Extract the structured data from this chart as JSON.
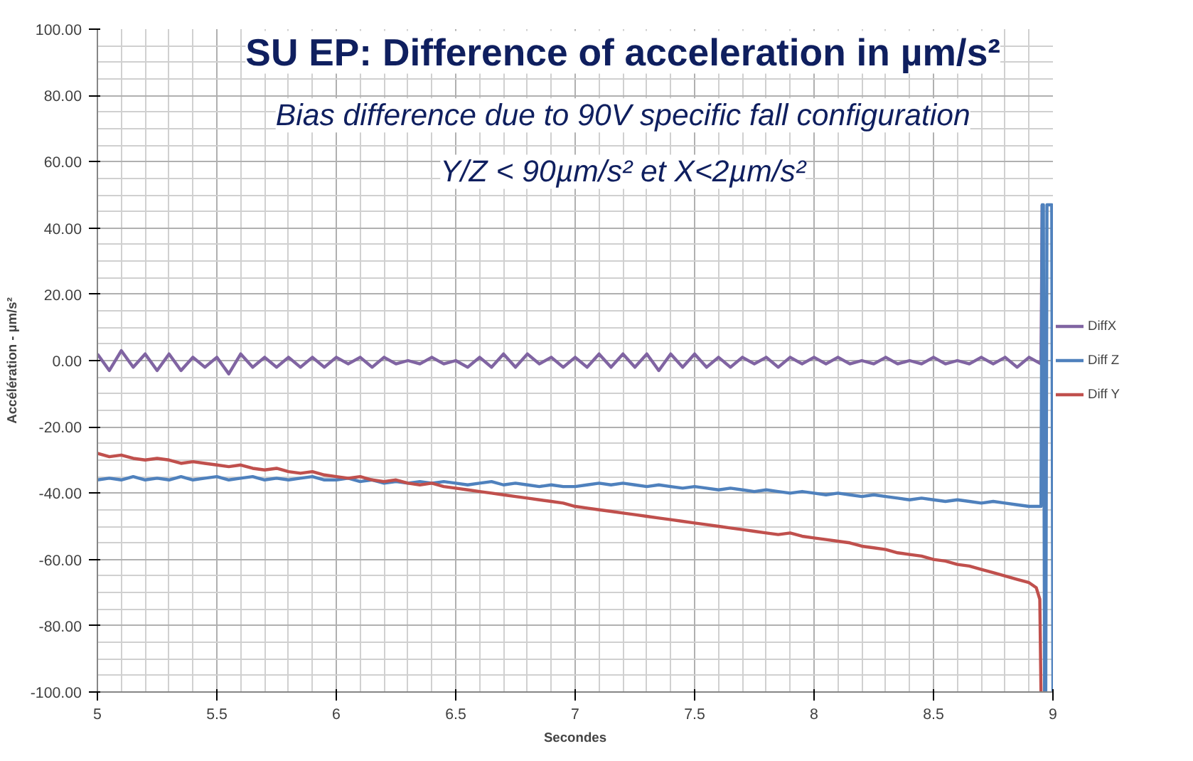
{
  "chart_data": {
    "type": "line",
    "title": "SU EP: Difference of acceleration in µm/s²",
    "subtitle": "Bias difference due to 90V specific fall configuration\nY/Z < 90µm/s² et X<2µm/s²",
    "xlabel": "Secondes",
    "ylabel": "Accélération - µm/s²",
    "xlim": [
      5,
      9
    ],
    "xticks": [
      5,
      5.5,
      6,
      6.5,
      7,
      7.5,
      8,
      8.5,
      9
    ],
    "ylim": [
      -100,
      100
    ],
    "yticks": [
      {
        "value": -100,
        "label": "-100.00"
      },
      {
        "value": -80,
        "label": "-80.00"
      },
      {
        "value": -60,
        "label": "-60.00"
      },
      {
        "value": -40,
        "label": "-40.00"
      },
      {
        "value": -20,
        "label": "-20.00"
      },
      {
        "value": 0,
        "label": "0.00"
      },
      {
        "value": 20,
        "label": "20.00"
      },
      {
        "value": 40,
        "label": "40.00"
      },
      {
        "value": 60,
        "label": "60.00"
      },
      {
        "value": 80,
        "label": "80.00"
      },
      {
        "value": 100,
        "label": "100.00"
      }
    ],
    "grid": true,
    "legend": "right",
    "line_style": "solid",
    "series": [
      {
        "name": "DiffX",
        "color": "#8064a2",
        "x": [
          5.0,
          5.05,
          5.1,
          5.15,
          5.2,
          5.25,
          5.3,
          5.35,
          5.4,
          5.45,
          5.5,
          5.55,
          5.6,
          5.65,
          5.7,
          5.75,
          5.8,
          5.85,
          5.9,
          5.95,
          6.0,
          6.05,
          6.1,
          6.15,
          6.2,
          6.25,
          6.3,
          6.35,
          6.4,
          6.45,
          6.5,
          6.55,
          6.6,
          6.65,
          6.7,
          6.75,
          6.8,
          6.85,
          6.9,
          6.95,
          7.0,
          7.05,
          7.1,
          7.15,
          7.2,
          7.25,
          7.3,
          7.35,
          7.4,
          7.45,
          7.5,
          7.55,
          7.6,
          7.65,
          7.7,
          7.75,
          7.8,
          7.85,
          7.9,
          7.95,
          8.0,
          8.05,
          8.1,
          8.15,
          8.2,
          8.25,
          8.3,
          8.35,
          8.4,
          8.45,
          8.5,
          8.55,
          8.6,
          8.65,
          8.7,
          8.75,
          8.8,
          8.85,
          8.9,
          8.95,
          8.955
        ],
        "values": [
          2,
          -3,
          3,
          -2,
          2,
          -3,
          2,
          -3,
          1,
          -2,
          1,
          -4,
          2,
          -2,
          1,
          -2,
          1,
          -2,
          1,
          -2,
          1,
          -1,
          1,
          -2,
          1,
          -1,
          0,
          -1,
          1,
          -1,
          0,
          -2,
          1,
          -2,
          2,
          -2,
          2,
          -1,
          1,
          -2,
          1,
          -2,
          2,
          -2,
          2,
          -2,
          2,
          -3,
          2,
          -2,
          2,
          -2,
          1,
          -2,
          1,
          -1,
          1,
          -2,
          1,
          -1,
          1,
          -1,
          1,
          -1,
          0,
          -1,
          1,
          -1,
          0,
          -1,
          1,
          -1,
          0,
          -1,
          1,
          -1,
          1,
          -2,
          1,
          -1,
          47
        ]
      },
      {
        "name": "Diff Z",
        "color": "#4f81bd",
        "x": [
          5.0,
          5.05,
          5.1,
          5.15,
          5.2,
          5.25,
          5.3,
          5.35,
          5.4,
          5.45,
          5.5,
          5.55,
          5.6,
          5.65,
          5.7,
          5.75,
          5.8,
          5.85,
          5.9,
          5.95,
          6.0,
          6.05,
          6.1,
          6.15,
          6.2,
          6.25,
          6.3,
          6.35,
          6.4,
          6.45,
          6.5,
          6.55,
          6.6,
          6.65,
          6.7,
          6.75,
          6.8,
          6.85,
          6.9,
          6.95,
          7.0,
          7.05,
          7.1,
          7.15,
          7.2,
          7.25,
          7.3,
          7.35,
          7.4,
          7.45,
          7.5,
          7.55,
          7.6,
          7.65,
          7.7,
          7.75,
          7.8,
          7.85,
          7.9,
          7.95,
          8.0,
          8.05,
          8.1,
          8.15,
          8.2,
          8.25,
          8.3,
          8.35,
          8.4,
          8.45,
          8.5,
          8.55,
          8.6,
          8.65,
          8.7,
          8.75,
          8.8,
          8.85,
          8.9,
          8.95,
          8.955,
          8.96,
          8.965,
          8.97,
          8.975,
          8.995,
          9.0
        ],
        "values": [
          -36,
          -35.5,
          -36,
          -35,
          -36,
          -35.5,
          -36,
          -35,
          -36,
          -35.5,
          -35,
          -36,
          -35.5,
          -35,
          -36,
          -35.5,
          -36,
          -35.5,
          -35,
          -36,
          -36,
          -35.5,
          -36.5,
          -36,
          -37,
          -36.5,
          -37,
          -36.5,
          -37,
          -36.5,
          -37,
          -37.5,
          -37,
          -36.5,
          -37.5,
          -37,
          -37.5,
          -38,
          -37.5,
          -38,
          -38,
          -37.5,
          -37,
          -37.5,
          -37,
          -37.5,
          -38,
          -37.5,
          -38,
          -38.5,
          -38,
          -38.5,
          -39,
          -38.5,
          -39,
          -39.5,
          -39,
          -39.5,
          -40,
          -39.5,
          -40,
          -40.5,
          -40,
          -40.5,
          -41,
          -40.5,
          -41,
          -41.5,
          -42,
          -41.5,
          -42,
          -42.5,
          -42,
          -42.5,
          -43,
          -42.5,
          -43,
          -43.5,
          -44,
          -44,
          47,
          47,
          -100,
          -100,
          47,
          47,
          -100
        ]
      },
      {
        "name": "Diff Y",
        "color": "#c0504d",
        "x": [
          5.0,
          5.05,
          5.1,
          5.15,
          5.2,
          5.25,
          5.3,
          5.35,
          5.4,
          5.45,
          5.5,
          5.55,
          5.6,
          5.65,
          5.7,
          5.75,
          5.8,
          5.85,
          5.9,
          5.95,
          6.0,
          6.05,
          6.1,
          6.15,
          6.2,
          6.25,
          6.3,
          6.35,
          6.4,
          6.45,
          6.5,
          6.55,
          6.6,
          6.65,
          6.7,
          6.75,
          6.8,
          6.85,
          6.9,
          6.95,
          7.0,
          7.05,
          7.1,
          7.15,
          7.2,
          7.25,
          7.3,
          7.35,
          7.4,
          7.45,
          7.5,
          7.55,
          7.6,
          7.65,
          7.7,
          7.75,
          7.8,
          7.85,
          7.9,
          7.95,
          8.0,
          8.05,
          8.1,
          8.15,
          8.2,
          8.25,
          8.3,
          8.35,
          8.4,
          8.45,
          8.5,
          8.55,
          8.6,
          8.65,
          8.7,
          8.75,
          8.8,
          8.85,
          8.9,
          8.93,
          8.945,
          8.95
        ],
        "values": [
          -28,
          -29,
          -28.5,
          -29.5,
          -30,
          -29.5,
          -30,
          -31,
          -30.5,
          -31,
          -31.5,
          -32,
          -31.5,
          -32.5,
          -33,
          -32.5,
          -33.5,
          -34,
          -33.5,
          -34.5,
          -35,
          -35.5,
          -35,
          -36,
          -36.5,
          -36,
          -37,
          -37.5,
          -37,
          -38,
          -38.5,
          -39,
          -39.5,
          -40,
          -40.5,
          -41,
          -41.5,
          -42,
          -42.5,
          -43,
          -44,
          -44.5,
          -45,
          -45.5,
          -46,
          -46.5,
          -47,
          -47.5,
          -48,
          -48.5,
          -49,
          -49.5,
          -50,
          -50.5,
          -51,
          -51.5,
          -52,
          -52.5,
          -52,
          -53,
          -53.5,
          -54,
          -54.5,
          -55,
          -56,
          -56.5,
          -57,
          -58,
          -58.5,
          -59,
          -60,
          -60.5,
          -61.5,
          -62,
          -63,
          -64,
          -65,
          -66,
          -67,
          -68.5,
          -72,
          -100
        ]
      }
    ]
  }
}
